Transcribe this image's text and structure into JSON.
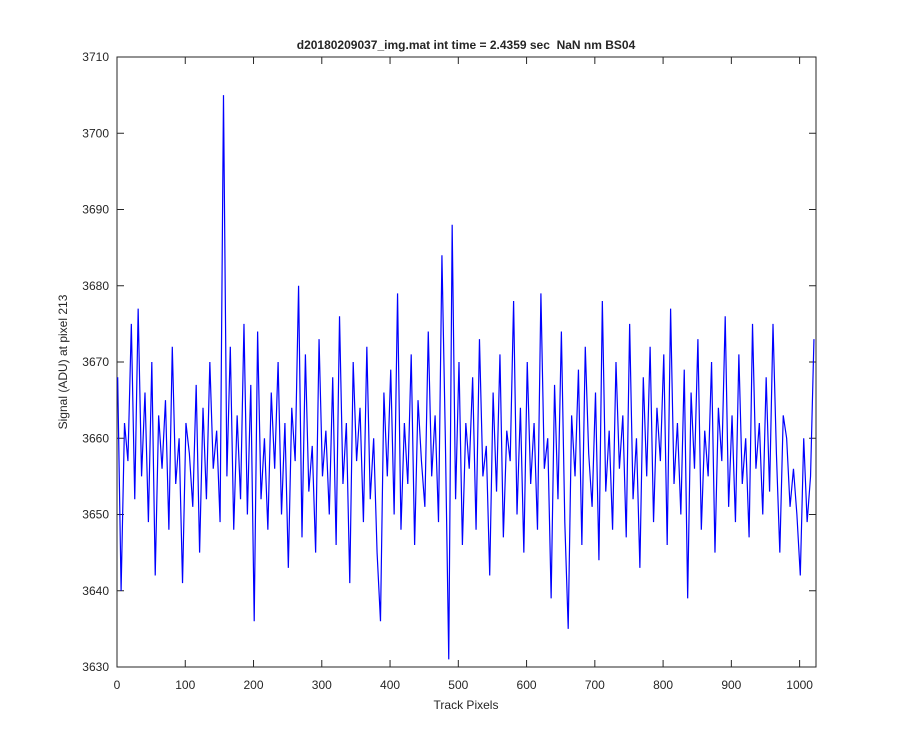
{
  "chart_data": {
    "type": "line",
    "title": "d20180209037_img.mat int time = 2.4359 sec  NaN nm BS04",
    "xlabel": "Track Pixels",
    "ylabel": "Signal (ADU) at pixel 213",
    "xlim": [
      0,
      1024
    ],
    "xticks": [
      0,
      100,
      200,
      300,
      400,
      500,
      600,
      700,
      800,
      900,
      1000
    ],
    "ylim": [
      3630,
      3710
    ],
    "yticks": [
      3630,
      3640,
      3650,
      3660,
      3670,
      3680,
      3690,
      3700,
      3710
    ],
    "series": [
      {
        "color": "#0000ff",
        "x": [
          1,
          6,
          11,
          16,
          21,
          26,
          31,
          36,
          41,
          46,
          51,
          56,
          61,
          66,
          71,
          76,
          81,
          86,
          91,
          96,
          101,
          106,
          111,
          116,
          121,
          126,
          131,
          136,
          141,
          146,
          151,
          156,
          161,
          166,
          171,
          176,
          181,
          186,
          191,
          196,
          201,
          206,
          211,
          216,
          221,
          226,
          231,
          236,
          241,
          246,
          251,
          256,
          261,
          266,
          271,
          276,
          281,
          286,
          291,
          296,
          301,
          306,
          311,
          316,
          321,
          326,
          331,
          336,
          341,
          346,
          351,
          356,
          361,
          366,
          371,
          376,
          381,
          386,
          391,
          396,
          401,
          406,
          411,
          416,
          421,
          426,
          431,
          436,
          441,
          446,
          451,
          456,
          461,
          466,
          471,
          476,
          481,
          486,
          491,
          496,
          501,
          506,
          511,
          516,
          521,
          526,
          531,
          536,
          541,
          546,
          551,
          556,
          561,
          566,
          571,
          576,
          581,
          586,
          591,
          596,
          601,
          606,
          611,
          616,
          621,
          626,
          631,
          636,
          641,
          646,
          651,
          656,
          661,
          666,
          671,
          676,
          681,
          686,
          691,
          696,
          701,
          706,
          711,
          716,
          721,
          726,
          731,
          736,
          741,
          746,
          751,
          756,
          761,
          766,
          771,
          776,
          781,
          786,
          791,
          796,
          801,
          806,
          811,
          816,
          821,
          826,
          831,
          836,
          841,
          846,
          851,
          856,
          861,
          866,
          871,
          876,
          881,
          886,
          891,
          896,
          901,
          906,
          911,
          916,
          921,
          926,
          931,
          936,
          941,
          946,
          951,
          956,
          961,
          966,
          971,
          976,
          981,
          986,
          991,
          996,
          1001,
          1006,
          1011,
          1016,
          1021
        ],
        "values": [
          3668,
          3640,
          3662,
          3657,
          3675,
          3652,
          3677,
          3655,
          3666,
          3649,
          3670,
          3642,
          3663,
          3656,
          3665,
          3648,
          3672,
          3654,
          3660,
          3641,
          3662,
          3658,
          3651,
          3667,
          3645,
          3664,
          3652,
          3670,
          3656,
          3661,
          3649,
          3705,
          3655,
          3672,
          3648,
          3663,
          3652,
          3675,
          3650,
          3667,
          3636,
          3674,
          3652,
          3660,
          3648,
          3666,
          3656,
          3670,
          3650,
          3662,
          3643,
          3664,
          3657,
          3680,
          3647,
          3671,
          3653,
          3659,
          3645,
          3673,
          3655,
          3661,
          3650,
          3668,
          3646,
          3676,
          3654,
          3662,
          3641,
          3670,
          3657,
          3664,
          3649,
          3672,
          3652,
          3660,
          3645,
          3636,
          3666,
          3655,
          3669,
          3650,
          3679,
          3648,
          3662,
          3654,
          3671,
          3646,
          3665,
          3657,
          3651,
          3674,
          3655,
          3663,
          3649,
          3684,
          3660,
          3631,
          3688,
          3652,
          3670,
          3646,
          3662,
          3656,
          3668,
          3648,
          3673,
          3655,
          3659,
          3642,
          3666,
          3653,
          3671,
          3647,
          3661,
          3657,
          3678,
          3650,
          3664,
          3645,
          3670,
          3654,
          3662,
          3648,
          3679,
          3656,
          3660,
          3639,
          3667,
          3652,
          3674,
          3649,
          3635,
          3663,
          3655,
          3669,
          3646,
          3672,
          3658,
          3651,
          3666,
          3644,
          3678,
          3653,
          3661,
          3648,
          3670,
          3656,
          3663,
          3647,
          3675,
          3652,
          3660,
          3643,
          3668,
          3655,
          3672,
          3649,
          3664,
          3657,
          3671,
          3646,
          3677,
          3654,
          3662,
          3650,
          3669,
          3639,
          3666,
          3656,
          3673,
          3648,
          3661,
          3655,
          3670,
          3645,
          3664,
          3657,
          3676,
          3651,
          3663,
          3649,
          3671,
          3654,
          3660,
          3647,
          3675,
          3656,
          3662,
          3650,
          3668,
          3653,
          3675,
          3658,
          3645,
          3663,
          3660,
          3651,
          3656,
          3650,
          3642,
          3660,
          3649,
          3655,
          3673
        ]
      }
    ]
  }
}
